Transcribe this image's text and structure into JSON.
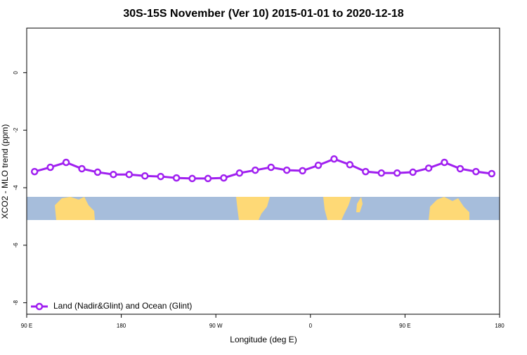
{
  "chart_data": {
    "type": "line",
    "title": "30S-15S November (Ver 10)   2015-01-01 to 2020-12-18",
    "xlabel": "Longitude (deg E)",
    "ylabel": "XCO2 - MLO trend (ppm)",
    "x": [
      97.5,
      112.5,
      127.5,
      142.5,
      157.5,
      172.5,
      187.5,
      202.5,
      217.5,
      232.5,
      247.5,
      262.5,
      277.5,
      292.5,
      307.5,
      322.5,
      337.5,
      352.5,
      367.5,
      382.5,
      397.5,
      412.5,
      427.5,
      442.5,
      457.5,
      472.5,
      487.5,
      502.5,
      517.5,
      532.5
    ],
    "series": [
      {
        "name": "Land (Nadir&Glint) and Ocean (Glint)",
        "color": "#a020f0",
        "values": [
          -3.44,
          -3.29,
          -3.12,
          -3.34,
          -3.46,
          -3.54,
          -3.54,
          -3.59,
          -3.61,
          -3.66,
          -3.68,
          -3.68,
          -3.66,
          -3.49,
          -3.39,
          -3.29,
          -3.39,
          -3.41,
          -3.22,
          -3.0,
          -3.2,
          -3.44,
          -3.49,
          -3.49,
          -3.46,
          -3.32,
          -3.12,
          -3.34,
          -3.44,
          -3.51
        ]
      }
    ],
    "xlim": [
      90,
      540
    ],
    "xticks": [
      {
        "value": 90,
        "label": "90 E"
      },
      180,
      {
        "value": 270,
        "label": "90 W"
      },
      {
        "value": 360,
        "label": "0"
      },
      {
        "value": 450,
        "label": "90 E"
      },
      {
        "value": 540,
        "label": "180"
      }
    ],
    "ylim": [
      -8.4,
      1.55
    ],
    "yticks": [
      0,
      -2,
      -4,
      -6,
      -8
    ],
    "legend": "bottom left"
  }
}
